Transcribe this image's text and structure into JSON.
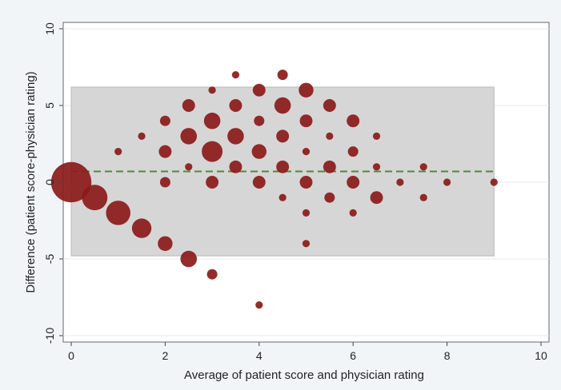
{
  "chart_data": {
    "type": "scatter",
    "xlabel": "Average of patient score and physician rating",
    "ylabel": "Difference (patient score-physician rating)",
    "xlim": [
      0,
      10
    ],
    "ylim": [
      -10,
      10
    ],
    "x_ticks": [
      0,
      2,
      4,
      6,
      8,
      10
    ],
    "y_ticks": [
      -10,
      -5,
      0,
      5,
      10
    ],
    "grid": "horizontal",
    "limits_band": {
      "lower": -4.8,
      "upper": 6.2,
      "x_start": 0,
      "x_end": 9
    },
    "mean_difference": 0.7,
    "colors": {
      "points": "#8b1a1a",
      "band": "#d6d6d6",
      "mean_line": "#4f8a3a",
      "plot_bg": "#ffffff",
      "frame_bg": "#f2f5f8"
    },
    "points": [
      {
        "x": 0,
        "y": 0,
        "count": 30
      },
      {
        "x": 0.5,
        "y": -1,
        "count": 12
      },
      {
        "x": 1,
        "y": -2,
        "count": 11
      },
      {
        "x": 1.5,
        "y": -3,
        "count": 7
      },
      {
        "x": 2,
        "y": -4,
        "count": 4
      },
      {
        "x": 2.5,
        "y": -5,
        "count": 5
      },
      {
        "x": 3,
        "y": -6,
        "count": 2
      },
      {
        "x": 4,
        "y": -8,
        "count": 1
      },
      {
        "x": 1,
        "y": 2,
        "count": 1
      },
      {
        "x": 1.5,
        "y": 3,
        "count": 1
      },
      {
        "x": 2,
        "y": 0,
        "count": 2
      },
      {
        "x": 2,
        "y": 2,
        "count": 3
      },
      {
        "x": 2,
        "y": 4,
        "count": 2
      },
      {
        "x": 2.5,
        "y": 1,
        "count": 1
      },
      {
        "x": 2.5,
        "y": 3,
        "count": 5
      },
      {
        "x": 2.5,
        "y": 5,
        "count": 3
      },
      {
        "x": 3,
        "y": 0,
        "count": 3
      },
      {
        "x": 3,
        "y": 2,
        "count": 8
      },
      {
        "x": 3,
        "y": 4,
        "count": 5
      },
      {
        "x": 3,
        "y": 6,
        "count": 1
      },
      {
        "x": 3.5,
        "y": 1,
        "count": 3
      },
      {
        "x": 3.5,
        "y": 3,
        "count": 5
      },
      {
        "x": 3.5,
        "y": 5,
        "count": 3
      },
      {
        "x": 3.5,
        "y": 7,
        "count": 1
      },
      {
        "x": 4,
        "y": 0,
        "count": 3
      },
      {
        "x": 4,
        "y": 2,
        "count": 4
      },
      {
        "x": 4,
        "y": 4,
        "count": 2
      },
      {
        "x": 4,
        "y": 6,
        "count": 3
      },
      {
        "x": 4.5,
        "y": -1,
        "count": 1
      },
      {
        "x": 4.5,
        "y": 1,
        "count": 3
      },
      {
        "x": 4.5,
        "y": 3,
        "count": 3
      },
      {
        "x": 4.5,
        "y": 5,
        "count": 5
      },
      {
        "x": 4.5,
        "y": 7,
        "count": 2
      },
      {
        "x": 5,
        "y": -4,
        "count": 1
      },
      {
        "x": 5,
        "y": -2,
        "count": 1
      },
      {
        "x": 5,
        "y": 0,
        "count": 3
      },
      {
        "x": 5,
        "y": 2,
        "count": 1
      },
      {
        "x": 5,
        "y": 4,
        "count": 3
      },
      {
        "x": 5,
        "y": 6,
        "count": 4
      },
      {
        "x": 5.5,
        "y": -1,
        "count": 2
      },
      {
        "x": 5.5,
        "y": 1,
        "count": 3
      },
      {
        "x": 5.5,
        "y": 3,
        "count": 1
      },
      {
        "x": 5.5,
        "y": 5,
        "count": 3
      },
      {
        "x": 6,
        "y": -2,
        "count": 1
      },
      {
        "x": 6,
        "y": 0,
        "count": 3
      },
      {
        "x": 6,
        "y": 2,
        "count": 2
      },
      {
        "x": 6,
        "y": 4,
        "count": 3
      },
      {
        "x": 6.5,
        "y": -1,
        "count": 3
      },
      {
        "x": 6.5,
        "y": 1,
        "count": 1
      },
      {
        "x": 6.5,
        "y": 3,
        "count": 1
      },
      {
        "x": 7,
        "y": 0,
        "count": 1
      },
      {
        "x": 7.5,
        "y": -1,
        "count": 1
      },
      {
        "x": 7.5,
        "y": 1,
        "count": 1
      },
      {
        "x": 8,
        "y": 0,
        "count": 1
      },
      {
        "x": 9,
        "y": 0,
        "count": 1
      }
    ]
  }
}
